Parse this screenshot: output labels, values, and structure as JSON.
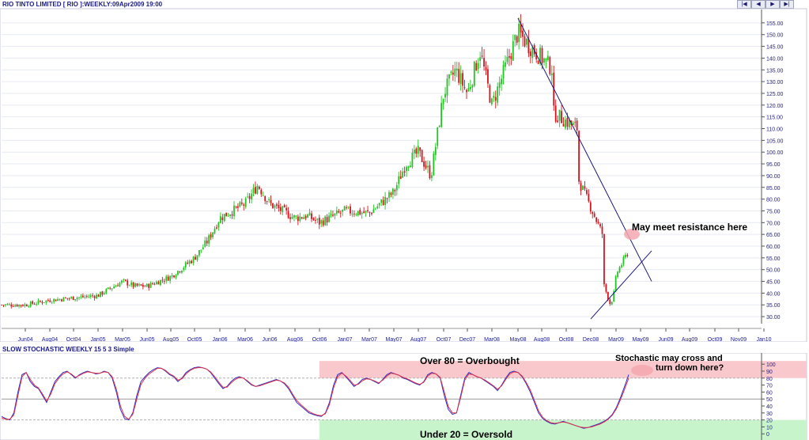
{
  "header": {
    "title": "RIO TINTO LIMITED [ RIO ]:WEEKLY:09Apr2009 19:00",
    "nav_buttons": [
      "|◀",
      "◀",
      "▶",
      "▶|"
    ]
  },
  "colors": {
    "up": "#22c422",
    "down": "#d4141c",
    "trendline": "#1a1a7a",
    "k_line": "#3030c0",
    "d_line": "#e0304a",
    "overbought_zone": "#f9c8cc",
    "oversold_zone": "#c8f4cc"
  },
  "chart_data": [
    {
      "type": "candlestick",
      "title": "RIO TINTO LIMITED [ RIO ]:WEEKLY:09Apr2009 19:00",
      "x_tick_labels": [
        "Jun04",
        "Aug04",
        "Oct04",
        "Jan05",
        "Mar05",
        "Jun05",
        "Aug05",
        "Oct05",
        "Jan06",
        "Mar06",
        "Jun06",
        "Aug06",
        "Oct06",
        "Jan07",
        "Mar07",
        "May07",
        "Aug07",
        "Oct07",
        "Dec07",
        "Mar08",
        "May08",
        "Aug08",
        "Oct08",
        "Dec08",
        "Mar09",
        "May09",
        "Jun09",
        "Aug09",
        "Oct09",
        "Nov09",
        "Jan10"
      ],
      "y_ticks": [
        30,
        35,
        40,
        45,
        50,
        55,
        60,
        65,
        70,
        75,
        80,
        85,
        90,
        95,
        100,
        105,
        110,
        115,
        120,
        125,
        130,
        135,
        140,
        145,
        150,
        155
      ],
      "y_tick_labels": [
        "30.00",
        "35.00",
        "40.00",
        "45.00",
        "50.00",
        "55.00",
        "60.00",
        "65.00",
        "70.00",
        "75.00",
        "80.00",
        "85.00",
        "90.00",
        "95.00",
        "100.00",
        "105.00",
        "110.00",
        "115.00",
        "120.00",
        "125.00",
        "130.00",
        "135.00",
        "140.00",
        "145.00",
        "150.00",
        "155.00"
      ],
      "ylim": [
        27,
        159
      ],
      "close_path_dates": [
        "Mar04",
        "Jun04",
        "Aug04",
        "Oct04",
        "Jan05",
        "Mar05",
        "May05",
        "Jun05",
        "Aug05",
        "Oct05",
        "Dec05",
        "Jan06",
        "Mar06",
        "Apr06",
        "Jun06",
        "Aug06",
        "Sep06",
        "Oct06",
        "Jan07",
        "Mar07",
        "May07",
        "Jun07",
        "Aug07",
        "Sep07",
        "Oct07",
        "Nov07",
        "Dec07",
        "Jan08",
        "Mar08",
        "May08",
        "Jun08",
        "Jul08",
        "Aug08",
        "Sep08",
        "Oct08",
        "Nov08",
        "Dec08",
        "Jan09",
        "Feb09",
        "Mar09",
        "Apr09"
      ],
      "close_path_values": [
        35,
        35,
        37,
        38,
        39,
        45,
        43,
        43,
        47,
        55,
        62,
        72,
        78,
        86,
        78,
        72,
        73,
        70,
        75,
        74,
        83,
        95,
        100,
        90,
        125,
        135,
        125,
        143,
        120,
        151,
        145,
        135,
        120,
        110,
        100,
        65,
        60,
        35,
        42,
        48,
        58
      ],
      "trendlines": [
        {
          "name": "resistance",
          "from": [
            "May08",
            157
          ],
          "to": [
            "May09",
            45
          ]
        },
        {
          "name": "support",
          "from": [
            "Dec08",
            29
          ],
          "to": [
            "May09",
            58
          ]
        }
      ],
      "annotations": [
        {
          "text": "May meet resistance here",
          "at": [
            "Apr09",
            64
          ]
        }
      ]
    },
    {
      "type": "line",
      "title": "SLOW STOCHASTIC WEEKLY 15 5 3 Simple",
      "y_ticks": [
        0,
        10,
        20,
        30,
        40,
        50,
        60,
        70,
        80,
        90,
        100
      ],
      "y_tick_labels": [
        "0",
        "10",
        "20",
        "30",
        "40",
        "50",
        "60",
        "70",
        "80",
        "90",
        "100"
      ],
      "ylim": [
        -2,
        107
      ],
      "reference_lines": [
        20,
        50,
        80
      ],
      "zones": [
        {
          "label": "Over 80 = Overbought",
          "from": 80,
          "to": 100
        },
        {
          "label": "Under 20 = Oversold",
          "from": 0,
          "to": 20
        }
      ],
      "series": [
        {
          "values": [
            25,
            22,
            20,
            30,
            60,
            85,
            88,
            75,
            68,
            65,
            55,
            45,
            60,
            75,
            82,
            88,
            90,
            85,
            80,
            85,
            88,
            90,
            88,
            86,
            87,
            90,
            88,
            80,
            60,
            35,
            22,
            20,
            30,
            55,
            75,
            82,
            88,
            92,
            95,
            94,
            90,
            85,
            82,
            75,
            80,
            88,
            92,
            95,
            96,
            95,
            93,
            88,
            80,
            72,
            65,
            68,
            75,
            80,
            82,
            80,
            75,
            70,
            68,
            70,
            72,
            74,
            76,
            78,
            76,
            72,
            65,
            55,
            45,
            40,
            35,
            30,
            28,
            26,
            25,
            30,
            45,
            70,
            85,
            88,
            82,
            75,
            68,
            72,
            78,
            80,
            78,
            75,
            72,
            78,
            85,
            88,
            86,
            84,
            80,
            78,
            75,
            72,
            70,
            75,
            85,
            88,
            86,
            80,
            55,
            35,
            28,
            30,
            55,
            80,
            88,
            85,
            82,
            80,
            76,
            72,
            68,
            62,
            70,
            80,
            88,
            90,
            88,
            82,
            72,
            60,
            45,
            30,
            22,
            18,
            15,
            14,
            16,
            18,
            16,
            14,
            12,
            10,
            8,
            9,
            11,
            13,
            15,
            18,
            22,
            28,
            38,
            52,
            68,
            85
          ]
        },
        {
          "values": [
            23,
            21,
            21,
            27,
            55,
            82,
            88,
            78,
            70,
            66,
            57,
            47,
            57,
            72,
            80,
            86,
            89,
            86,
            81,
            84,
            87,
            89,
            88,
            87,
            87,
            89,
            88,
            82,
            64,
            40,
            25,
            21,
            28,
            50,
            71,
            80,
            86,
            90,
            94,
            94,
            91,
            86,
            83,
            77,
            79,
            86,
            91,
            94,
            95,
            95,
            93,
            89,
            82,
            74,
            67,
            67,
            73,
            78,
            81,
            80,
            76,
            71,
            68,
            69,
            71,
            73,
            75,
            77,
            76,
            73,
            67,
            57,
            48,
            42,
            37,
            32,
            29,
            27,
            26,
            29,
            42,
            66,
            82,
            87,
            83,
            77,
            70,
            71,
            76,
            79,
            78,
            76,
            73,
            77,
            83,
            87,
            86,
            84,
            81,
            79,
            76,
            73,
            71,
            74,
            83,
            87,
            86,
            81,
            60,
            39,
            30,
            30,
            52,
            77,
            86,
            85,
            82,
            80,
            77,
            73,
            69,
            64,
            69,
            78,
            86,
            89,
            88,
            83,
            74,
            63,
            48,
            33,
            24,
            19,
            16,
            15,
            16,
            17,
            16,
            14,
            12,
            10,
            9,
            9,
            10,
            12,
            14,
            17,
            21,
            27,
            36,
            49,
            64,
            80
          ]
        }
      ],
      "annotations": [
        {
          "text": "Stochastic may cross and turn down here?"
        }
      ]
    }
  ],
  "annotations": {
    "resistance": "May meet resistance here",
    "stochastic_line1": "Stochastic may cross and",
    "stochastic_line2": "turn down here?",
    "overbought": "Over 80 = Overbought",
    "oversold": "Under 20 = Oversold"
  },
  "subchart": {
    "title": "SLOW STOCHASTIC WEEKLY 15 5 3 Simple"
  }
}
